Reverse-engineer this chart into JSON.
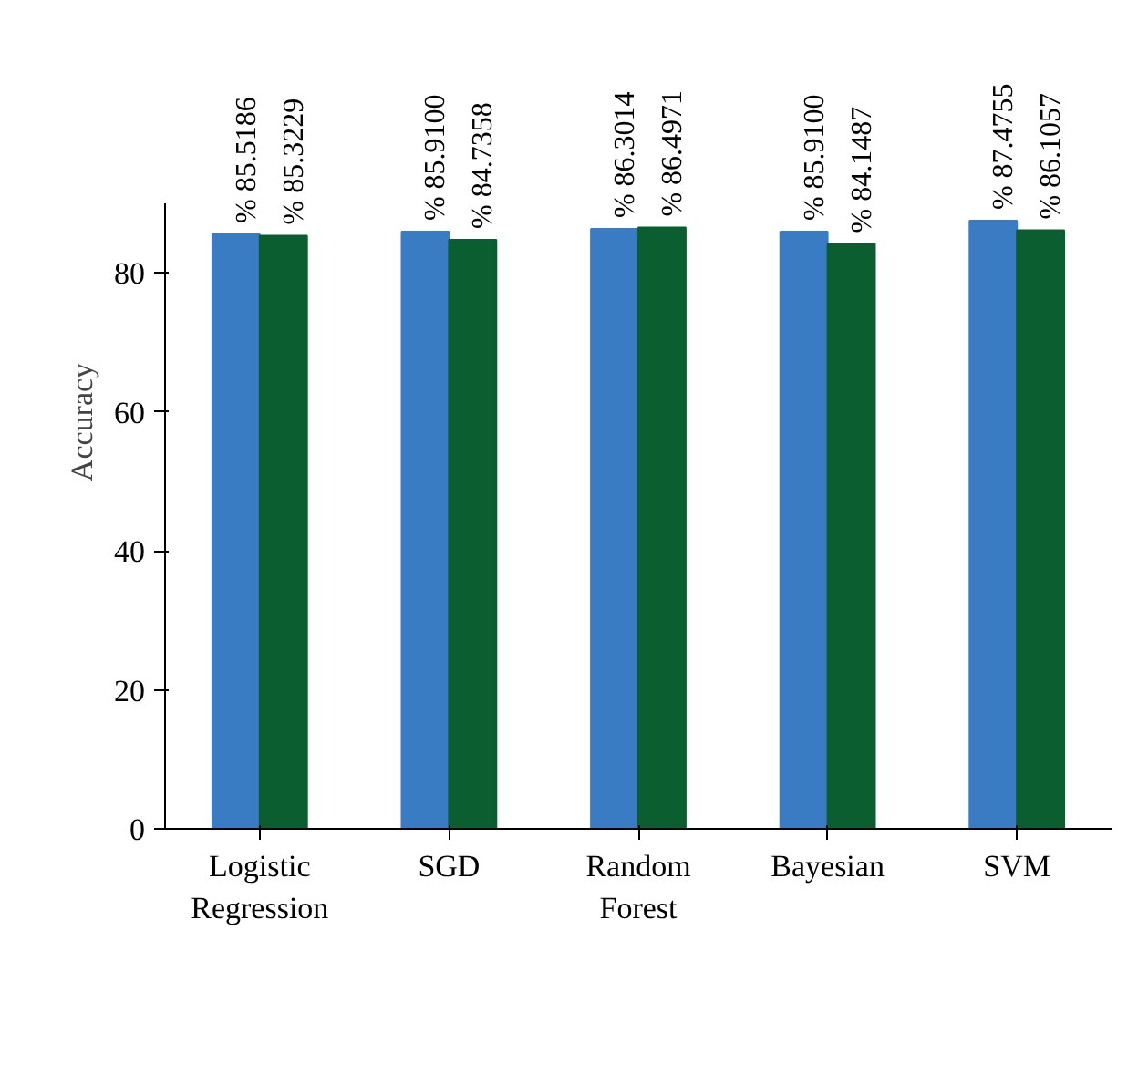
{
  "chart_data": {
    "type": "bar",
    "ylabel": "Accuracy",
    "categories": [
      "Logistic Regression",
      "SGD",
      "Random Forest",
      "Bayesian",
      "SVM"
    ],
    "series": [
      {
        "color": "#3a7cc4",
        "values": [
          85.5186,
          85.91,
          86.3014,
          85.91,
          87.4755
        ],
        "value_labels": [
          "% 85.5186",
          "% 85.9100",
          "% 86.3014",
          "% 85.9100",
          "% 87.4755"
        ]
      },
      {
        "color": "#0a5e2f",
        "values": [
          85.3229,
          84.7358,
          86.4971,
          84.1487,
          86.1057
        ],
        "value_labels": [
          "% 85.3229",
          "% 84.7358",
          "% 86.4971",
          "% 84.1487",
          "% 86.1057"
        ]
      }
    ],
    "ylim": [
      0,
      90
    ],
    "yticks": [
      0,
      20,
      40,
      60,
      80
    ],
    "grid": false
  }
}
